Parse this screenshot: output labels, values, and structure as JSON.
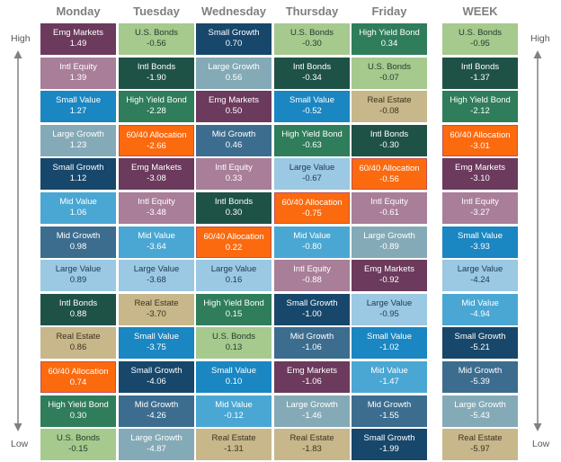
{
  "labels": {
    "high": "High",
    "low": "Low"
  },
  "colors": {
    "Emg Markets": "#6b3a5c",
    "Intl Equity": "#a87e98",
    "Small Value": "#1a86c2",
    "Large Growth": "#84aab7",
    "Small Growth": "#17476b",
    "Mid Value": "#4aa7d3",
    "Mid Growth": "#3c6d8f",
    "Large Value": "#9bc8e3",
    "Intl Bonds": "#1f5247",
    "Real Estate": "#c7b78a",
    "60/40 Allocation": "#fb6a0f",
    "High Yield Bond": "#2f7d5b",
    "U.S. Bonds": "#a6c98e"
  },
  "chart_data": {
    "type": "table",
    "rows_order": "high-to-low",
    "highlight_asset": "60/40 Allocation",
    "columns": [
      {
        "header": "Monday",
        "cells": [
          {
            "name": "Emg Markets",
            "value": "1.49"
          },
          {
            "name": "Intl Equity",
            "value": "1.39"
          },
          {
            "name": "Small Value",
            "value": "1.27"
          },
          {
            "name": "Large Growth",
            "value": "1.23"
          },
          {
            "name": "Small Growth",
            "value": "1.12"
          },
          {
            "name": "Mid Value",
            "value": "1.06"
          },
          {
            "name": "Mid Growth",
            "value": "0.98"
          },
          {
            "name": "Large Value",
            "value": "0.89"
          },
          {
            "name": "Intl Bonds",
            "value": "0.88"
          },
          {
            "name": "Real Estate",
            "value": "0.86"
          },
          {
            "name": "60/40 Allocation",
            "value": "0.74"
          },
          {
            "name": "High Yield Bond",
            "value": "0.30"
          },
          {
            "name": "U.S. Bonds",
            "value": "-0.15"
          }
        ]
      },
      {
        "header": "Tuesday",
        "cells": [
          {
            "name": "U.S. Bonds",
            "value": "-0.56"
          },
          {
            "name": "Intl Bonds",
            "value": "-1.90"
          },
          {
            "name": "High Yield Bond",
            "value": "-2.28"
          },
          {
            "name": "60/40 Allocation",
            "value": "-2.66"
          },
          {
            "name": "Emg Markets",
            "value": "-3.08"
          },
          {
            "name": "Intl Equity",
            "value": "-3.48"
          },
          {
            "name": "Mid Value",
            "value": "-3.64"
          },
          {
            "name": "Large Value",
            "value": "-3.68"
          },
          {
            "name": "Real Estate",
            "value": "-3.70"
          },
          {
            "name": "Small Value",
            "value": "-3.75"
          },
          {
            "name": "Small Growth",
            "value": "-4.06"
          },
          {
            "name": "Mid Growth",
            "value": "-4.26"
          },
          {
            "name": "Large Growth",
            "value": "-4.87"
          }
        ]
      },
      {
        "header": "Wednesday",
        "cells": [
          {
            "name": "Small Growth",
            "value": "0.70"
          },
          {
            "name": "Large Growth",
            "value": "0.56"
          },
          {
            "name": "Emg Markets",
            "value": "0.50"
          },
          {
            "name": "Mid Growth",
            "value": "0.46"
          },
          {
            "name": "Intl Equity",
            "value": "0.33"
          },
          {
            "name": "Intl Bonds",
            "value": "0.30"
          },
          {
            "name": "60/40 Allocation",
            "value": "0.22"
          },
          {
            "name": "Large Value",
            "value": "0.16"
          },
          {
            "name": "High Yield Bond",
            "value": "0.15"
          },
          {
            "name": "U.S. Bonds",
            "value": "0.13"
          },
          {
            "name": "Small Value",
            "value": "0.10"
          },
          {
            "name": "Mid Value",
            "value": "-0.12"
          },
          {
            "name": "Real Estate",
            "value": "-1.31"
          }
        ]
      },
      {
        "header": "Thursday",
        "cells": [
          {
            "name": "U.S. Bonds",
            "value": "-0.30"
          },
          {
            "name": "Intl Bonds",
            "value": "-0.34"
          },
          {
            "name": "Small Value",
            "value": "-0.52"
          },
          {
            "name": "High Yield Bond",
            "value": "-0.63"
          },
          {
            "name": "Large Value",
            "value": "-0.67"
          },
          {
            "name": "60/40 Allocation",
            "value": "-0.75"
          },
          {
            "name": "Mid Value",
            "value": "-0.80"
          },
          {
            "name": "Intl Equity",
            "value": "-0.88"
          },
          {
            "name": "Small Growth",
            "value": "-1.00"
          },
          {
            "name": "Mid Growth",
            "value": "-1.06"
          },
          {
            "name": "Emg Markets",
            "value": "-1.06"
          },
          {
            "name": "Large Growth",
            "value": "-1.46"
          },
          {
            "name": "Real Estate",
            "value": "-1.83"
          }
        ]
      },
      {
        "header": "Friday",
        "cells": [
          {
            "name": "High Yield Bond",
            "value": "0.34"
          },
          {
            "name": "U.S. Bonds",
            "value": "-0.07"
          },
          {
            "name": "Real Estate",
            "value": "-0.08"
          },
          {
            "name": "Intl Bonds",
            "value": "-0.30"
          },
          {
            "name": "60/40 Allocation",
            "value": "-0.56"
          },
          {
            "name": "Intl Equity",
            "value": "-0.61"
          },
          {
            "name": "Large Growth",
            "value": "-0.89"
          },
          {
            "name": "Emg Markets",
            "value": "-0.92"
          },
          {
            "name": "Large Value",
            "value": "-0.95"
          },
          {
            "name": "Small Value",
            "value": "-1.02"
          },
          {
            "name": "Mid Value",
            "value": "-1.47"
          },
          {
            "name": "Mid Growth",
            "value": "-1.55"
          },
          {
            "name": "Small Growth",
            "value": "-1.99"
          }
        ]
      },
      {
        "header": "WEEK",
        "cells": [
          {
            "name": "U.S. Bonds",
            "value": "-0.95"
          },
          {
            "name": "Intl Bonds",
            "value": "-1.37"
          },
          {
            "name": "High Yield Bond",
            "value": "-2.12"
          },
          {
            "name": "60/40 Allocation",
            "value": "-3.01"
          },
          {
            "name": "Emg Markets",
            "value": "-3.10"
          },
          {
            "name": "Intl Equity",
            "value": "-3.27"
          },
          {
            "name": "Small Value",
            "value": "-3.93"
          },
          {
            "name": "Large Value",
            "value": "-4.24"
          },
          {
            "name": "Mid Value",
            "value": "-4.94"
          },
          {
            "name": "Small Growth",
            "value": "-5.21"
          },
          {
            "name": "Mid Growth",
            "value": "-5.39"
          },
          {
            "name": "Large Growth",
            "value": "-5.43"
          },
          {
            "name": "Real Estate",
            "value": "-5.97"
          }
        ]
      }
    ]
  }
}
